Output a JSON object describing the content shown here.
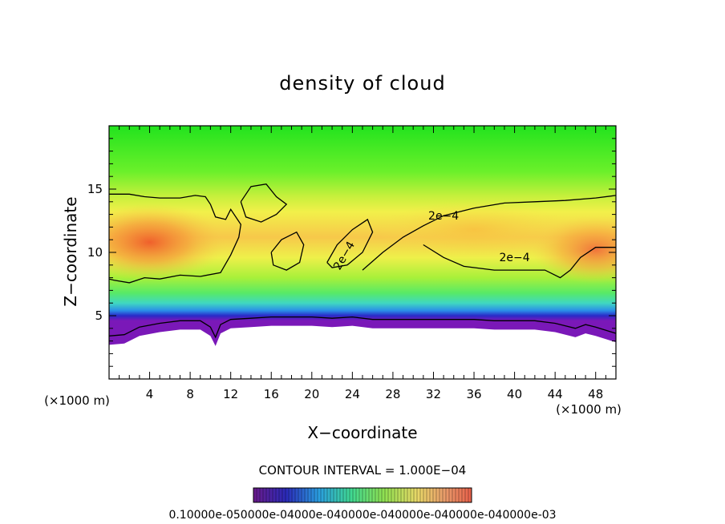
{
  "chart_data": {
    "type": "heatmap",
    "title": "density of cloud",
    "xlabel": "X−coordinate",
    "ylabel": "Z−coordinate",
    "x_unit": "(×1000 m)",
    "y_unit": "(×1000 m)",
    "xlim": [
      0,
      50
    ],
    "ylim": [
      0,
      20
    ],
    "x_ticks": [
      4,
      8,
      12,
      16,
      20,
      24,
      28,
      32,
      36,
      40,
      44,
      48
    ],
    "y_ticks": [
      5,
      10,
      15
    ],
    "contour_interval_text": "CONTOUR INTERVAL = 1.000E−04",
    "contour_level": "2e−4",
    "colorbar_ticks_text": "0.10000e-050000e-04000e-040000e-040000e-040000e-040000e-03",
    "cloud_base_km": [
      [
        0,
        2.7
      ],
      [
        1.5,
        2.8
      ],
      [
        3,
        3.4
      ],
      [
        5,
        3.7
      ],
      [
        7,
        3.9
      ],
      [
        9,
        3.9
      ],
      [
        10,
        3.4
      ],
      [
        10.5,
        2.6
      ],
      [
        11,
        3.6
      ],
      [
        12,
        4.0
      ],
      [
        14,
        4.1
      ],
      [
        16,
        4.2
      ],
      [
        18,
        4.2
      ],
      [
        20,
        4.2
      ],
      [
        22,
        4.1
      ],
      [
        24,
        4.2
      ],
      [
        26,
        4.0
      ],
      [
        28,
        4.0
      ],
      [
        30,
        4.0
      ],
      [
        32,
        4.0
      ],
      [
        34,
        4.0
      ],
      [
        36,
        4.0
      ],
      [
        38,
        3.9
      ],
      [
        40,
        3.9
      ],
      [
        42,
        3.9
      ],
      [
        44,
        3.7
      ],
      [
        46,
        3.3
      ],
      [
        47,
        3.6
      ],
      [
        48,
        3.4
      ],
      [
        50,
        2.9
      ]
    ],
    "contour_2e4_upper_km": [
      [
        0,
        14.6
      ],
      [
        2,
        14.6
      ],
      [
        3.5,
        14.4
      ],
      [
        5,
        14.3
      ],
      [
        7,
        14.3
      ],
      [
        8.5,
        14.5
      ],
      [
        9.5,
        14.4
      ],
      [
        10,
        13.8
      ],
      [
        10.5,
        12.8
      ],
      [
        11.5,
        12.6
      ],
      [
        12,
        13.4
      ],
      [
        13,
        12.2
      ],
      [
        12.8,
        11.2
      ],
      [
        12,
        9.8
      ],
      [
        11,
        8.4
      ],
      [
        9,
        8.1
      ],
      [
        7,
        8.2
      ],
      [
        5,
        7.9
      ],
      [
        3.5,
        8.0
      ],
      [
        2,
        7.6
      ],
      [
        0.5,
        7.8
      ],
      [
        0,
        7.9
      ]
    ],
    "contour_2e4_right_km": [
      [
        25,
        8.6
      ],
      [
        27,
        10.0
      ],
      [
        29,
        11.2
      ],
      [
        31,
        12.1
      ],
      [
        33,
        12.9
      ],
      [
        36,
        13.5
      ],
      [
        39,
        13.9
      ],
      [
        42,
        14.0
      ],
      [
        45,
        14.1
      ],
      [
        48,
        14.3
      ],
      [
        50,
        14.5
      ]
    ],
    "contour_2e4_right_lower_km": [
      [
        31,
        10.6
      ],
      [
        33,
        9.6
      ],
      [
        35,
        8.9
      ],
      [
        38,
        8.6
      ],
      [
        41,
        8.6
      ],
      [
        43,
        8.6
      ],
      [
        44.5,
        8.0
      ],
      [
        45.5,
        8.6
      ],
      [
        46.5,
        9.6
      ],
      [
        48,
        10.4
      ],
      [
        50,
        10.4
      ]
    ],
    "contour_2e4_blobs_km": [
      [
        [
          13,
          14.0
        ],
        [
          14,
          15.2
        ],
        [
          15.5,
          15.4
        ],
        [
          16.5,
          14.4
        ],
        [
          17.5,
          13.8
        ],
        [
          16.5,
          13.0
        ],
        [
          15,
          12.4
        ],
        [
          13.5,
          12.8
        ],
        [
          13,
          14.0
        ]
      ],
      [
        [
          16,
          10.0
        ],
        [
          17,
          11.0
        ],
        [
          18.5,
          11.6
        ],
        [
          19.2,
          10.6
        ],
        [
          18.8,
          9.2
        ],
        [
          17.5,
          8.6
        ],
        [
          16.2,
          9.0
        ],
        [
          16,
          10.0
        ]
      ],
      [
        [
          21.5,
          9.2
        ],
        [
          22.5,
          10.6
        ],
        [
          24,
          11.8
        ],
        [
          25.5,
          12.6
        ],
        [
          26,
          11.6
        ],
        [
          25,
          10.0
        ],
        [
          23.5,
          9.0
        ],
        [
          22,
          8.8
        ],
        [
          21.5,
          9.2
        ]
      ]
    ]
  }
}
